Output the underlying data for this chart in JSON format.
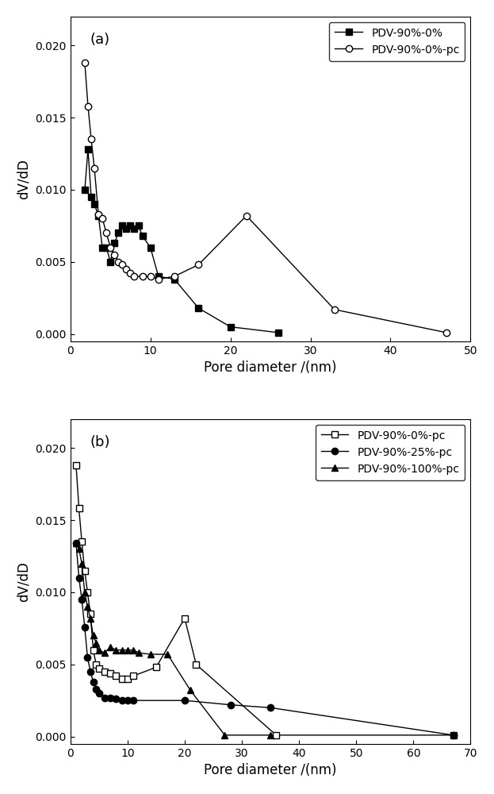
{
  "panel_a": {
    "series1": {
      "label": "PDV-90%-0%",
      "marker": "s",
      "markersize": 6,
      "color": "black",
      "markerfacecolor": "black",
      "linestyle": "-",
      "x": [
        1.8,
        2.2,
        2.6,
        3.0,
        3.5,
        4.0,
        4.5,
        5.0,
        5.5,
        6.0,
        6.5,
        7.0,
        7.5,
        8.0,
        8.5,
        9.0,
        10.0,
        11.0,
        13.0,
        16.0,
        20.0,
        26.0
      ],
      "y": [
        0.01,
        0.0128,
        0.0095,
        0.009,
        0.0082,
        0.006,
        0.006,
        0.005,
        0.0063,
        0.007,
        0.0075,
        0.0073,
        0.0075,
        0.0073,
        0.0075,
        0.0068,
        0.006,
        0.004,
        0.0038,
        0.0018,
        0.0005,
        0.0001
      ]
    },
    "series2": {
      "label": "PDV-90%-0%-pc",
      "marker": "o",
      "markersize": 6,
      "color": "black",
      "markerfacecolor": "white",
      "linestyle": "-",
      "x": [
        1.8,
        2.2,
        2.6,
        3.0,
        3.5,
        4.0,
        4.5,
        5.0,
        5.5,
        6.0,
        6.5,
        7.0,
        7.5,
        8.0,
        9.0,
        10.0,
        11.0,
        13.0,
        16.0,
        22.0,
        33.0,
        47.0
      ],
      "y": [
        0.0188,
        0.0158,
        0.0135,
        0.0115,
        0.0083,
        0.008,
        0.007,
        0.006,
        0.0055,
        0.005,
        0.0048,
        0.0045,
        0.0042,
        0.004,
        0.004,
        0.004,
        0.0038,
        0.004,
        0.0048,
        0.0082,
        0.0017,
        0.0001
      ]
    },
    "xlabel": "Pore diameter /(nm)",
    "ylabel": "dV/dD",
    "xlim": [
      0,
      50
    ],
    "ylim": [
      -0.0005,
      0.022
    ],
    "yticks": [
      0.0,
      0.005,
      0.01,
      0.015,
      0.02
    ],
    "xticks": [
      0,
      10,
      20,
      30,
      40,
      50
    ],
    "panel_label": "(a)"
  },
  "panel_b": {
    "series1": {
      "label": "PDV-90%-0%-pc",
      "marker": "s",
      "markersize": 6,
      "color": "black",
      "markerfacecolor": "white",
      "linestyle": "-",
      "x": [
        1.0,
        1.5,
        2.0,
        2.5,
        3.0,
        3.5,
        4.0,
        4.5,
        5.0,
        6.0,
        7.0,
        8.0,
        9.0,
        10.0,
        11.0,
        15.0,
        20.0,
        22.0,
        36.0,
        67.0
      ],
      "y": [
        0.0188,
        0.0158,
        0.0135,
        0.0115,
        0.01,
        0.0085,
        0.006,
        0.005,
        0.0047,
        0.0045,
        0.0044,
        0.0042,
        0.004,
        0.004,
        0.0042,
        0.0048,
        0.0082,
        0.005,
        0.0001,
        0.0001
      ]
    },
    "series2": {
      "label": "PDV-90%-25%-pc",
      "marker": "o",
      "markersize": 6,
      "color": "black",
      "markerfacecolor": "black",
      "linestyle": "-",
      "x": [
        1.0,
        1.5,
        2.0,
        2.5,
        3.0,
        3.5,
        4.0,
        4.5,
        5.0,
        6.0,
        7.0,
        8.0,
        9.0,
        10.0,
        11.0,
        20.0,
        28.0,
        35.0,
        67.0
      ],
      "y": [
        0.0134,
        0.011,
        0.0095,
        0.0076,
        0.0055,
        0.0045,
        0.0038,
        0.0033,
        0.003,
        0.0027,
        0.0027,
        0.0026,
        0.0025,
        0.0025,
        0.0025,
        0.0025,
        0.0022,
        0.002,
        0.0001
      ]
    },
    "series3": {
      "label": "PDV-90%-100%-pc",
      "marker": "^",
      "markersize": 6,
      "color": "black",
      "markerfacecolor": "black",
      "linestyle": "-",
      "x": [
        1.0,
        1.5,
        2.0,
        2.5,
        3.0,
        3.5,
        4.0,
        4.5,
        5.0,
        6.0,
        7.0,
        8.0,
        9.0,
        10.0,
        11.0,
        12.0,
        14.0,
        17.0,
        21.0,
        27.0,
        35.0
      ],
      "y": [
        0.0134,
        0.013,
        0.012,
        0.01,
        0.009,
        0.0082,
        0.007,
        0.0065,
        0.006,
        0.0058,
        0.0062,
        0.006,
        0.006,
        0.006,
        0.006,
        0.0058,
        0.0057,
        0.0057,
        0.0032,
        0.0001,
        0.0001
      ]
    },
    "xlabel": "Pore diameter /(nm)",
    "ylabel": "dV/dD",
    "xlim": [
      0,
      70
    ],
    "ylim": [
      -0.0005,
      0.022
    ],
    "yticks": [
      0.0,
      0.005,
      0.01,
      0.015,
      0.02
    ],
    "xticks": [
      0,
      10,
      20,
      30,
      40,
      50,
      60,
      70
    ],
    "panel_label": "(b)"
  }
}
